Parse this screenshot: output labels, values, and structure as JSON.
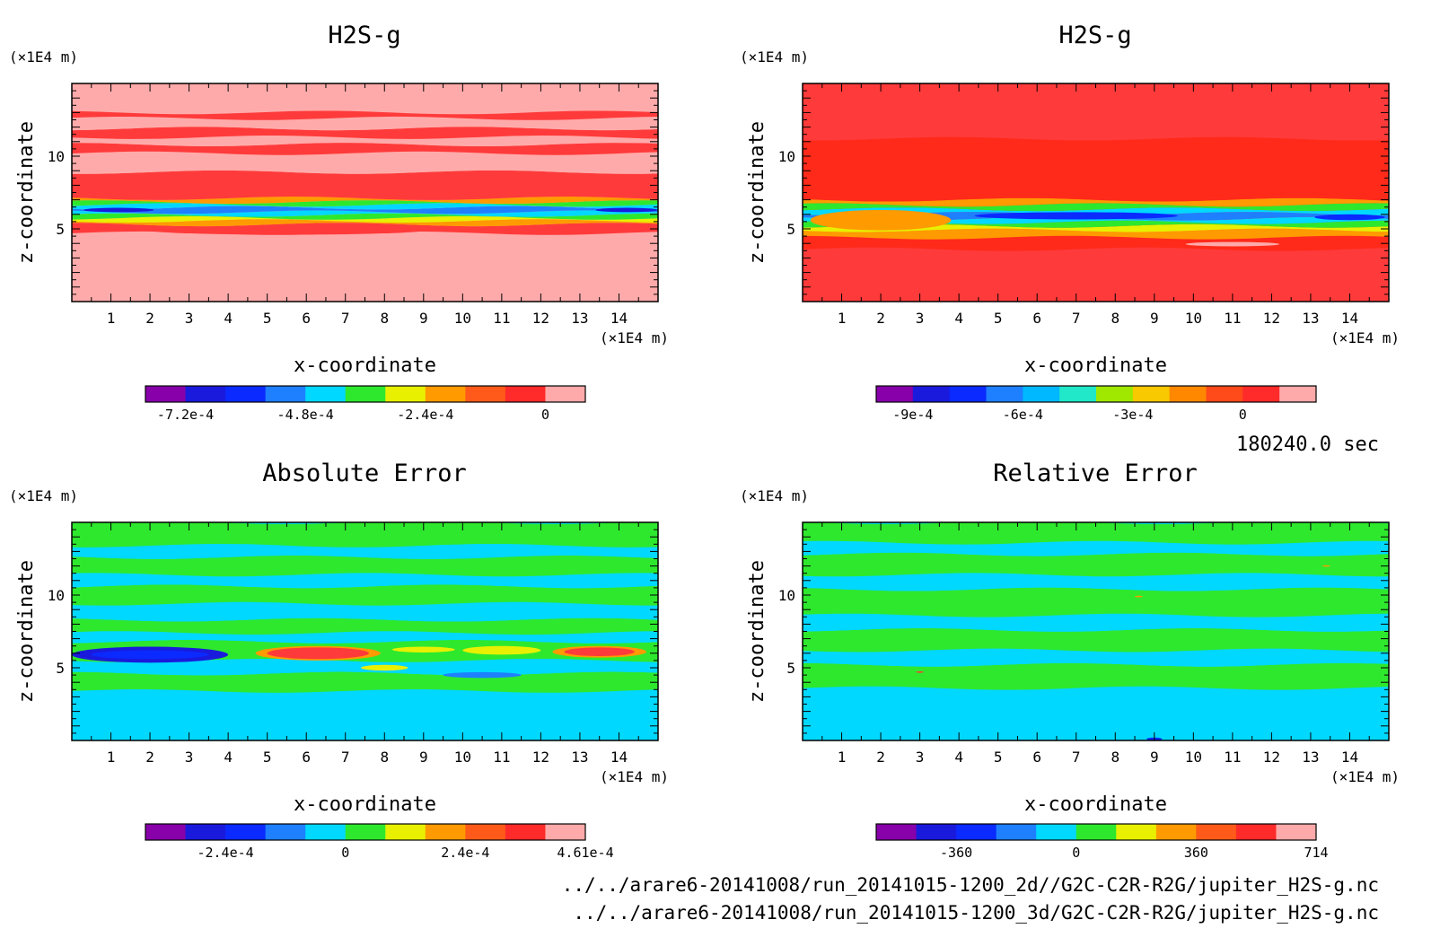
{
  "chart_data": [
    {
      "type": "heatmap",
      "title": "H2S-g",
      "xlabel": "x-coordinate",
      "ylabel": "z-coordinate",
      "x_unit": "(×1E4 m)",
      "y_unit": "(×1E4 m)",
      "xlim": [
        0,
        15
      ],
      "ylim": [
        0,
        15
      ],
      "x_ticks": [
        "1",
        "2",
        "3",
        "4",
        "5",
        "6",
        "7",
        "8",
        "9",
        "10",
        "11",
        "12",
        "13",
        "14"
      ],
      "y_ticks": [
        "5",
        "10"
      ],
      "background_color": "#ffaaaa",
      "bands": [
        {
          "z": [
            0.0,
            4.7
          ],
          "color": "#ffaaaa"
        },
        {
          "z": [
            4.7,
            5.3
          ],
          "color": "#ff3a3a"
        },
        {
          "z": [
            5.3,
            5.55
          ],
          "color": "#ff9a00"
        },
        {
          "z": [
            5.55,
            5.75
          ],
          "color": "#e8f000"
        },
        {
          "z": [
            5.75,
            5.95
          ],
          "color": "#2ee82e"
        },
        {
          "z": [
            5.95,
            6.15
          ],
          "color": "#00d8ff"
        },
        {
          "z": [
            6.15,
            6.45
          ],
          "color": "#1e7fff"
        },
        {
          "z": [
            6.45,
            6.65
          ],
          "color": "#00d8ff"
        },
        {
          "z": [
            6.65,
            6.85
          ],
          "color": "#2ee82e"
        },
        {
          "z": [
            6.85,
            7.1
          ],
          "color": "#ff9a00"
        },
        {
          "z": [
            7.1,
            8.9
          ],
          "color": "#ff3a3a"
        },
        {
          "z": [
            8.9,
            10.2
          ],
          "color": "#ffaaaa"
        },
        {
          "z": [
            10.2,
            10.8
          ],
          "color": "#ff3a3a"
        },
        {
          "z": [
            10.8,
            11.3
          ],
          "color": "#ffaaaa"
        },
        {
          "z": [
            11.3,
            11.9
          ],
          "color": "#ff3a3a"
        },
        {
          "z": [
            11.9,
            12.6
          ],
          "color": "#ffaaaa"
        },
        {
          "z": [
            12.6,
            13.0
          ],
          "color": "#ff3a3a"
        }
      ],
      "blobs": [
        {
          "x": 1.2,
          "z": 6.3,
          "rx": 0.9,
          "rz": 0.15,
          "color": "#1a1adc"
        },
        {
          "x": 14.2,
          "z": 6.3,
          "rx": 0.8,
          "rz": 0.15,
          "color": "#1a1adc"
        },
        {
          "x": 5.5,
          "z": 4.9,
          "rx": 3.5,
          "rz": 0.3,
          "color": "#ff3a3a"
        }
      ],
      "colorbar": {
        "colors": [
          "#8800aa",
          "#1a1adc",
          "#0a2aff",
          "#1e7fff",
          "#00d8ff",
          "#2ee82e",
          "#e8f000",
          "#ff9a00",
          "#ff5a1a",
          "#ff2a2a",
          "#ffaaaa"
        ],
        "labels": [
          {
            "text": "-7.2e-4",
            "pos": 0.0909
          },
          {
            "text": "-4.8e-4",
            "pos": 0.3636
          },
          {
            "text": "-2.4e-4",
            "pos": 0.6364
          },
          {
            "text": "0",
            "pos": 0.9091
          }
        ]
      }
    },
    {
      "type": "heatmap",
      "title": "H2S-g",
      "xlabel": "x-coordinate",
      "ylabel": "z-coordinate",
      "x_unit": "(×1E4 m)",
      "y_unit": "(×1E4 m)",
      "xlim": [
        0,
        15
      ],
      "ylim": [
        0,
        15
      ],
      "x_ticks": [
        "1",
        "2",
        "3",
        "4",
        "5",
        "6",
        "7",
        "8",
        "9",
        "10",
        "11",
        "12",
        "13",
        "14"
      ],
      "y_ticks": [
        "5",
        "10"
      ],
      "background_color": "#ff3a3a",
      "bands": [
        {
          "z": [
            0.0,
            3.6
          ],
          "color": "#ff3a3a"
        },
        {
          "z": [
            3.6,
            4.4
          ],
          "color": "#ff2a1a"
        },
        {
          "z": [
            4.4,
            4.9
          ],
          "color": "#ff9a00"
        },
        {
          "z": [
            4.9,
            5.2
          ],
          "color": "#e8f000"
        },
        {
          "z": [
            5.2,
            5.45
          ],
          "color": "#2ee82e"
        },
        {
          "z": [
            5.45,
            5.7
          ],
          "color": "#00d8ff"
        },
        {
          "z": [
            5.7,
            6.05
          ],
          "color": "#1e7fff"
        },
        {
          "z": [
            6.05,
            6.35
          ],
          "color": "#00d8ff"
        },
        {
          "z": [
            6.35,
            6.65
          ],
          "color": "#2ee82e"
        },
        {
          "z": [
            6.65,
            7.0
          ],
          "color": "#ff9a00"
        },
        {
          "z": [
            7.0,
            11.2
          ],
          "color": "#ff2a1a"
        },
        {
          "z": [
            11.2,
            13.5
          ],
          "color": "#ff3a3a"
        }
      ],
      "blobs": [
        {
          "x": 2.0,
          "z": 5.6,
          "rx": 1.8,
          "rz": 0.7,
          "color": "#ff9a00"
        },
        {
          "x": 7.0,
          "z": 5.9,
          "rx": 2.6,
          "rz": 0.25,
          "color": "#0a2aff"
        },
        {
          "x": 14.0,
          "z": 5.8,
          "rx": 0.9,
          "rz": 0.2,
          "color": "#0a2aff"
        },
        {
          "x": 11.0,
          "z": 3.95,
          "rx": 1.2,
          "rz": 0.15,
          "color": "#ffaaaa"
        }
      ],
      "colorbar": {
        "colors": [
          "#8800aa",
          "#1a1adc",
          "#0a2aff",
          "#1e7fff",
          "#00b8ff",
          "#20e8c8",
          "#a0e800",
          "#f8c800",
          "#ff8800",
          "#ff4a1a",
          "#ff2a2a",
          "#ffaaaa"
        ],
        "labels": [
          {
            "text": "-9e-4",
            "pos": 0.0833
          },
          {
            "text": "-6e-4",
            "pos": 0.3333
          },
          {
            "text": "-3e-4",
            "pos": 0.5833
          },
          {
            "text": "0",
            "pos": 0.8333
          }
        ]
      }
    },
    {
      "type": "heatmap",
      "title": "Absolute Error",
      "xlabel": "x-coordinate",
      "ylabel": "z-coordinate",
      "x_unit": "(×1E4 m)",
      "y_unit": "(×1E4 m)",
      "xlim": [
        0,
        15
      ],
      "ylim": [
        0,
        15
      ],
      "x_ticks": [
        "1",
        "2",
        "3",
        "4",
        "5",
        "6",
        "7",
        "8",
        "9",
        "10",
        "11",
        "12",
        "13",
        "14"
      ],
      "y_ticks": [
        "5",
        "10"
      ],
      "background_color": "#00d8ff",
      "bands": [
        {
          "z": [
            0.0,
            3.4
          ],
          "color": "#00d8ff"
        },
        {
          "z": [
            3.4,
            4.6
          ],
          "color": "#2ee82e"
        },
        {
          "z": [
            4.6,
            5.5
          ],
          "color": "#00d8ff"
        },
        {
          "z": [
            5.5,
            6.8
          ],
          "color": "#2ee82e"
        },
        {
          "z": [
            6.8,
            7.4
          ],
          "color": "#00d8ff"
        },
        {
          "z": [
            7.4,
            8.3
          ],
          "color": "#2ee82e"
        },
        {
          "z": [
            8.3,
            9.4
          ],
          "color": "#00d8ff"
        },
        {
          "z": [
            9.4,
            10.6
          ],
          "color": "#2ee82e"
        },
        {
          "z": [
            10.6,
            11.4
          ],
          "color": "#00d8ff"
        },
        {
          "z": [
            11.4,
            12.6
          ],
          "color": "#2ee82e"
        },
        {
          "z": [
            12.6,
            13.4
          ],
          "color": "#00d8ff"
        },
        {
          "z": [
            13.4,
            15.0
          ],
          "color": "#2ee82e"
        }
      ],
      "blobs": [
        {
          "x": 2.0,
          "z": 5.9,
          "rx": 2.0,
          "rz": 0.55,
          "color": "#1a1adc"
        },
        {
          "x": 2.0,
          "z": 5.9,
          "rx": 1.5,
          "rz": 0.3,
          "color": "#0a2aff"
        },
        {
          "x": 6.3,
          "z": 6.0,
          "rx": 1.6,
          "rz": 0.5,
          "color": "#ff9a00"
        },
        {
          "x": 6.3,
          "z": 6.0,
          "rx": 1.3,
          "rz": 0.4,
          "color": "#ff3a3a"
        },
        {
          "x": 9.0,
          "z": 6.25,
          "rx": 0.8,
          "rz": 0.2,
          "color": "#e8f000"
        },
        {
          "x": 11.0,
          "z": 6.2,
          "rx": 1.0,
          "rz": 0.3,
          "color": "#e8f000"
        },
        {
          "x": 13.5,
          "z": 6.1,
          "rx": 1.2,
          "rz": 0.4,
          "color": "#ff9a00"
        },
        {
          "x": 13.5,
          "z": 6.1,
          "rx": 0.9,
          "rz": 0.3,
          "color": "#ff3a3a"
        },
        {
          "x": 8.0,
          "z": 5.0,
          "rx": 0.6,
          "rz": 0.2,
          "color": "#e8f000"
        },
        {
          "x": 10.5,
          "z": 4.5,
          "rx": 1.0,
          "rz": 0.2,
          "color": "#1e7fff"
        }
      ],
      "colorbar": {
        "colors": [
          "#8800aa",
          "#1a1adc",
          "#0a2aff",
          "#1e7fff",
          "#00d8ff",
          "#2ee82e",
          "#e8f000",
          "#ff9a00",
          "#ff5a1a",
          "#ff2a2a",
          "#ffaaaa"
        ],
        "labels": [
          {
            "text": "-2.4e-4",
            "pos": 0.1818
          },
          {
            "text": "0",
            "pos": 0.4545
          },
          {
            "text": "2.4e-4",
            "pos": 0.7273
          },
          {
            "text": "4.61e-4",
            "pos": 1.0
          }
        ]
      }
    },
    {
      "type": "heatmap",
      "title": "Relative Error",
      "xlabel": "x-coordinate",
      "ylabel": "z-coordinate",
      "x_unit": "(×1E4 m)",
      "y_unit": "(×1E4 m)",
      "xlim": [
        0,
        15
      ],
      "ylim": [
        0,
        15
      ],
      "x_ticks": [
        "1",
        "2",
        "3",
        "4",
        "5",
        "6",
        "7",
        "8",
        "9",
        "10",
        "11",
        "12",
        "13",
        "14"
      ],
      "y_ticks": [
        "5",
        "10"
      ],
      "background_color": "#00d8ff",
      "bands": [
        {
          "z": [
            0.0,
            3.6
          ],
          "color": "#00d8ff"
        },
        {
          "z": [
            3.6,
            5.2
          ],
          "color": "#2ee82e"
        },
        {
          "z": [
            5.2,
            6.2
          ],
          "color": "#00d8ff"
        },
        {
          "z": [
            6.2,
            7.6
          ],
          "color": "#2ee82e"
        },
        {
          "z": [
            7.6,
            8.6
          ],
          "color": "#00d8ff"
        },
        {
          "z": [
            8.6,
            10.4
          ],
          "color": "#2ee82e"
        },
        {
          "z": [
            10.4,
            11.4
          ],
          "color": "#00d8ff"
        },
        {
          "z": [
            11.4,
            12.8
          ],
          "color": "#2ee82e"
        },
        {
          "z": [
            12.8,
            13.6
          ],
          "color": "#00d8ff"
        },
        {
          "z": [
            13.6,
            15.0
          ],
          "color": "#2ee82e"
        }
      ],
      "blobs": [
        {
          "x": 9.0,
          "z": 0.1,
          "rx": 0.2,
          "rz": 0.1,
          "color": "#0a2aff"
        },
        {
          "x": 3.0,
          "z": 4.7,
          "rx": 0.1,
          "rz": 0.05,
          "color": "#ff3a3a"
        },
        {
          "x": 8.6,
          "z": 9.9,
          "rx": 0.1,
          "rz": 0.05,
          "color": "#ff9a00"
        },
        {
          "x": 13.4,
          "z": 12.0,
          "rx": 0.1,
          "rz": 0.05,
          "color": "#ff9a00"
        }
      ],
      "colorbar": {
        "colors": [
          "#8800aa",
          "#1a1adc",
          "#0a2aff",
          "#1e7fff",
          "#00d8ff",
          "#2ee82e",
          "#e8f000",
          "#ff9a00",
          "#ff5a1a",
          "#ff2a2a",
          "#ffaaaa"
        ],
        "labels": [
          {
            "text": "-360",
            "pos": 0.1818
          },
          {
            "text": "0",
            "pos": 0.4545
          },
          {
            "text": "360",
            "pos": 0.7273
          },
          {
            "text": "714",
            "pos": 1.0
          }
        ]
      }
    }
  ],
  "footer": {
    "time": "180240.0 sec",
    "path_2d": "../../arare6-20141008/run_20141015-1200_2d//G2C-C2R-R2G/jupiter_H2S-g.nc",
    "path_3d": "../../arare6-20141008/run_20141015-1200_3d/G2C-C2R-R2G/jupiter_H2S-g.nc"
  }
}
